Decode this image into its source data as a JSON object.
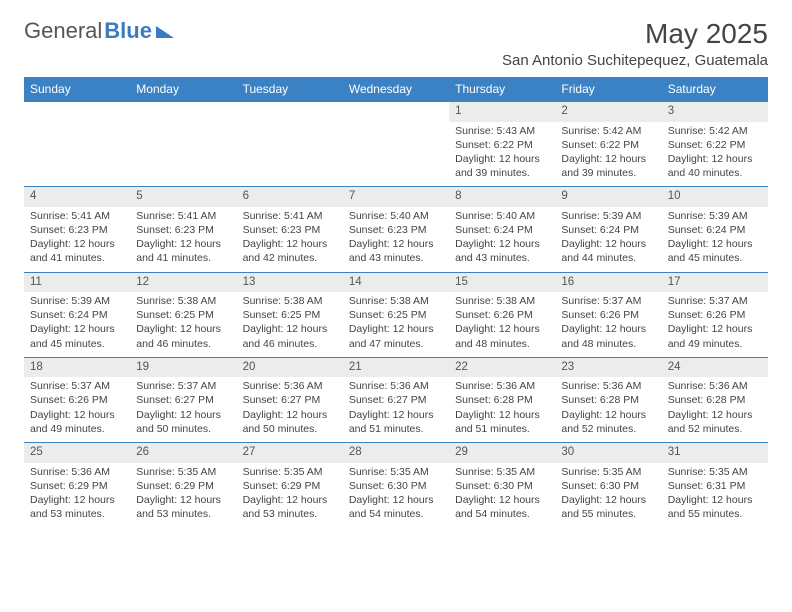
{
  "logo": {
    "text1": "General",
    "text2": "Blue"
  },
  "title": "May 2025",
  "location": "San Antonio Suchitepequez, Guatemala",
  "colors": {
    "header_bg": "#3b82c4",
    "header_text": "#ffffff",
    "daynum_bg": "#ececec",
    "row_border": "#3b82c4",
    "body_text": "#444444",
    "logo_blue": "#3b7bbf"
  },
  "typography": {
    "title_fontsize": 28,
    "location_fontsize": 15,
    "weekday_fontsize": 12,
    "cell_fontsize": 10.5
  },
  "weekdays": [
    "Sunday",
    "Monday",
    "Tuesday",
    "Wednesday",
    "Thursday",
    "Friday",
    "Saturday"
  ],
  "weeks": [
    [
      null,
      null,
      null,
      null,
      {
        "n": "1",
        "sr": "5:43 AM",
        "ss": "6:22 PM",
        "dl": "12 hours and 39 minutes."
      },
      {
        "n": "2",
        "sr": "5:42 AM",
        "ss": "6:22 PM",
        "dl": "12 hours and 39 minutes."
      },
      {
        "n": "3",
        "sr": "5:42 AM",
        "ss": "6:22 PM",
        "dl": "12 hours and 40 minutes."
      }
    ],
    [
      {
        "n": "4",
        "sr": "5:41 AM",
        "ss": "6:23 PM",
        "dl": "12 hours and 41 minutes."
      },
      {
        "n": "5",
        "sr": "5:41 AM",
        "ss": "6:23 PM",
        "dl": "12 hours and 41 minutes."
      },
      {
        "n": "6",
        "sr": "5:41 AM",
        "ss": "6:23 PM",
        "dl": "12 hours and 42 minutes."
      },
      {
        "n": "7",
        "sr": "5:40 AM",
        "ss": "6:23 PM",
        "dl": "12 hours and 43 minutes."
      },
      {
        "n": "8",
        "sr": "5:40 AM",
        "ss": "6:24 PM",
        "dl": "12 hours and 43 minutes."
      },
      {
        "n": "9",
        "sr": "5:39 AM",
        "ss": "6:24 PM",
        "dl": "12 hours and 44 minutes."
      },
      {
        "n": "10",
        "sr": "5:39 AM",
        "ss": "6:24 PM",
        "dl": "12 hours and 45 minutes."
      }
    ],
    [
      {
        "n": "11",
        "sr": "5:39 AM",
        "ss": "6:24 PM",
        "dl": "12 hours and 45 minutes."
      },
      {
        "n": "12",
        "sr": "5:38 AM",
        "ss": "6:25 PM",
        "dl": "12 hours and 46 minutes."
      },
      {
        "n": "13",
        "sr": "5:38 AM",
        "ss": "6:25 PM",
        "dl": "12 hours and 46 minutes."
      },
      {
        "n": "14",
        "sr": "5:38 AM",
        "ss": "6:25 PM",
        "dl": "12 hours and 47 minutes."
      },
      {
        "n": "15",
        "sr": "5:38 AM",
        "ss": "6:26 PM",
        "dl": "12 hours and 48 minutes."
      },
      {
        "n": "16",
        "sr": "5:37 AM",
        "ss": "6:26 PM",
        "dl": "12 hours and 48 minutes."
      },
      {
        "n": "17",
        "sr": "5:37 AM",
        "ss": "6:26 PM",
        "dl": "12 hours and 49 minutes."
      }
    ],
    [
      {
        "n": "18",
        "sr": "5:37 AM",
        "ss": "6:26 PM",
        "dl": "12 hours and 49 minutes."
      },
      {
        "n": "19",
        "sr": "5:37 AM",
        "ss": "6:27 PM",
        "dl": "12 hours and 50 minutes."
      },
      {
        "n": "20",
        "sr": "5:36 AM",
        "ss": "6:27 PM",
        "dl": "12 hours and 50 minutes."
      },
      {
        "n": "21",
        "sr": "5:36 AM",
        "ss": "6:27 PM",
        "dl": "12 hours and 51 minutes."
      },
      {
        "n": "22",
        "sr": "5:36 AM",
        "ss": "6:28 PM",
        "dl": "12 hours and 51 minutes."
      },
      {
        "n": "23",
        "sr": "5:36 AM",
        "ss": "6:28 PM",
        "dl": "12 hours and 52 minutes."
      },
      {
        "n": "24",
        "sr": "5:36 AM",
        "ss": "6:28 PM",
        "dl": "12 hours and 52 minutes."
      }
    ],
    [
      {
        "n": "25",
        "sr": "5:36 AM",
        "ss": "6:29 PM",
        "dl": "12 hours and 53 minutes."
      },
      {
        "n": "26",
        "sr": "5:35 AM",
        "ss": "6:29 PM",
        "dl": "12 hours and 53 minutes."
      },
      {
        "n": "27",
        "sr": "5:35 AM",
        "ss": "6:29 PM",
        "dl": "12 hours and 53 minutes."
      },
      {
        "n": "28",
        "sr": "5:35 AM",
        "ss": "6:30 PM",
        "dl": "12 hours and 54 minutes."
      },
      {
        "n": "29",
        "sr": "5:35 AM",
        "ss": "6:30 PM",
        "dl": "12 hours and 54 minutes."
      },
      {
        "n": "30",
        "sr": "5:35 AM",
        "ss": "6:30 PM",
        "dl": "12 hours and 55 minutes."
      },
      {
        "n": "31",
        "sr": "5:35 AM",
        "ss": "6:31 PM",
        "dl": "12 hours and 55 minutes."
      }
    ]
  ],
  "labels": {
    "sunrise": "Sunrise: ",
    "sunset": "Sunset: ",
    "daylight": "Daylight: "
  }
}
